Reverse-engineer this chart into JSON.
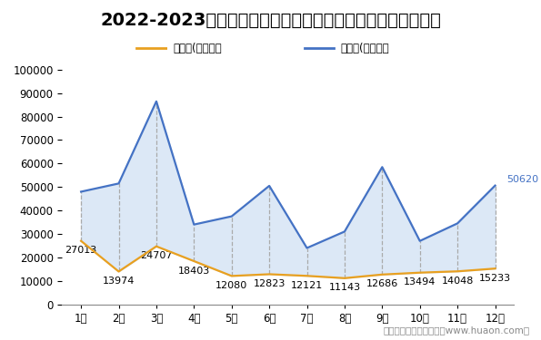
{
  "title": "2022-2023年甘肃省商品收发货人所在地进、出口额月度统计",
  "months": [
    "1月",
    "2月",
    "3月",
    "4月",
    "5月",
    "6月",
    "7月",
    "8月",
    "9月",
    "10月",
    "11月",
    "12月"
  ],
  "export": [
    27013,
    13974,
    24707,
    18403,
    12080,
    12823,
    12121,
    11143,
    12686,
    13494,
    14048,
    15233
  ],
  "import_": [
    48000,
    51500,
    86500,
    34000,
    37500,
    50500,
    24000,
    31000,
    58500,
    27000,
    34500,
    50620
  ],
  "export_color": "#E8A020",
  "import_color": "#4472C4",
  "fill_color": "#D6E4F5",
  "background_color": "#FFFFFF",
  "grid_color": "#AAAAAA",
  "ylim": [
    0,
    100000
  ],
  "yticks": [
    0,
    10000,
    20000,
    30000,
    40000,
    50000,
    60000,
    70000,
    80000,
    90000,
    100000
  ],
  "legend_export": "出口额(万美元）",
  "legend_import": "进口额(万美元）",
  "footer": "制图：华经产业研究院（www.huaon.com）",
  "title_fontsize": 14,
  "label_fontsize": 8,
  "tick_fontsize": 8.5,
  "footer_fontsize": 7.5
}
